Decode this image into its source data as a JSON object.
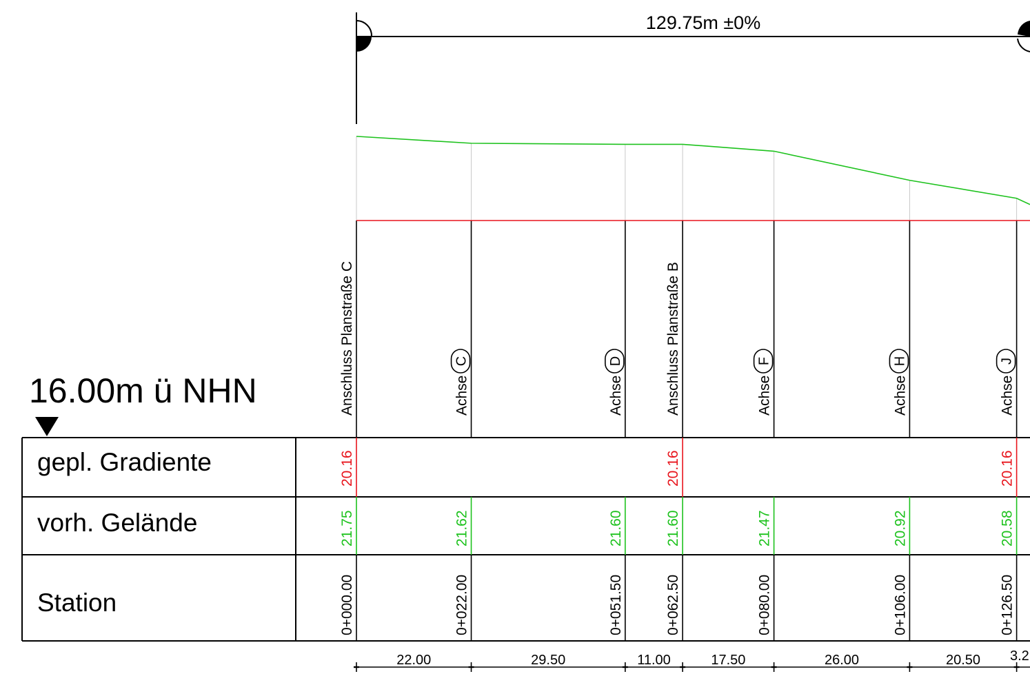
{
  "datum_label": "16.00m ü NHN",
  "total_length_label": "129.75m  ±0%",
  "row_labels": {
    "gradient": "gepl. Gradiente",
    "terrain": "vorh. Gelände",
    "station": "Station"
  },
  "colors": {
    "gradient": "#e8141c",
    "terrain": "#1dc21d",
    "line": "#000000",
    "grid": "#c8c8c8"
  },
  "stations": [
    {
      "station": "0+000.00",
      "chainage": 0.0,
      "terrain": "21.75",
      "gradient": "20.16",
      "label_type": "text",
      "label": "Anschluss Planstraße C"
    },
    {
      "station": "0+022.00",
      "chainage": 22.0,
      "terrain": "21.62",
      "gradient": "",
      "label_type": "axis",
      "label": "Achse",
      "axis": "C"
    },
    {
      "station": "0+051.50",
      "chainage": 51.5,
      "terrain": "21.60",
      "gradient": "",
      "label_type": "axis",
      "label": "Achse",
      "axis": "D"
    },
    {
      "station": "0+062.50",
      "chainage": 62.5,
      "terrain": "21.60",
      "gradient": "20.16",
      "label_type": "text",
      "label": "Anschluss Planstraße B"
    },
    {
      "station": "0+080.00",
      "chainage": 80.0,
      "terrain": "21.47",
      "gradient": "",
      "label_type": "axis",
      "label": "Achse",
      "axis": "F"
    },
    {
      "station": "0+106.00",
      "chainage": 106.0,
      "terrain": "20.92",
      "gradient": "",
      "label_type": "axis",
      "label": "Achse",
      "axis": "H"
    },
    {
      "station": "0+126.50",
      "chainage": 126.5,
      "terrain": "20.58",
      "gradient": "20.16",
      "label_type": "axis",
      "label": "Achse",
      "axis": "J"
    }
  ],
  "segments": [
    "22.00",
    "29.50",
    "11.00",
    "17.50",
    "26.00",
    "20.50",
    "3.2"
  ]
}
